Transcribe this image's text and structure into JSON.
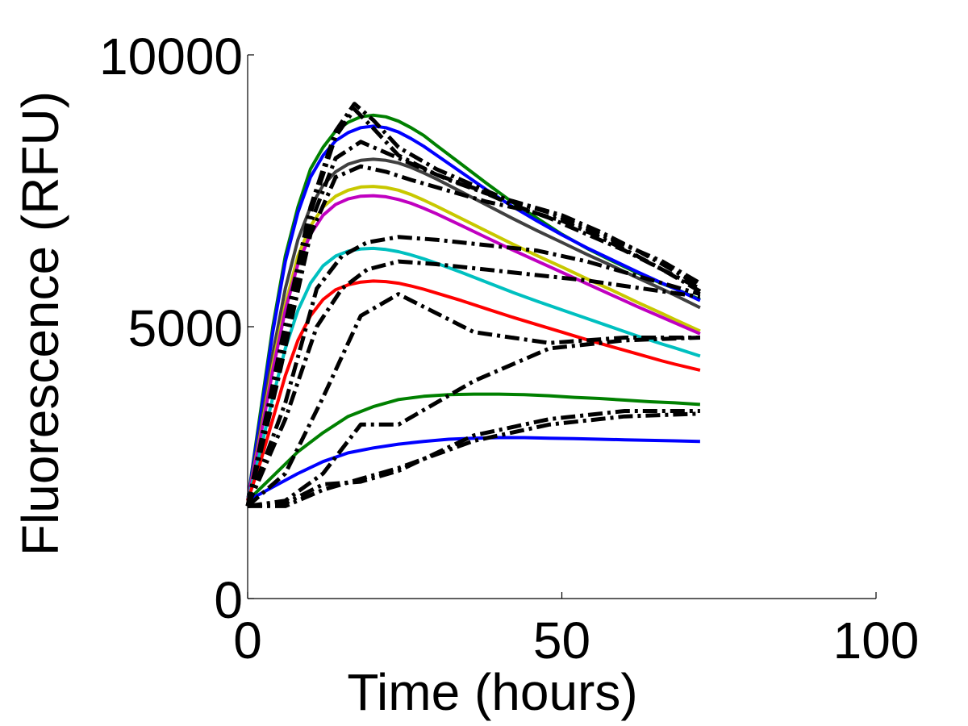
{
  "chart_data": {
    "type": "line",
    "title": "",
    "xlabel": "Time (hours)",
    "ylabel": "Fluorescence (RFU)",
    "xlim": [
      0,
      100
    ],
    "ylim": [
      0,
      10000
    ],
    "xticks": [
      0,
      50,
      100
    ],
    "yticks": [
      0,
      5000,
      10000
    ],
    "xtick_labels": [
      "0",
      "50",
      "100"
    ],
    "ytick_labels": [
      "0",
      "5000",
      "10000"
    ],
    "grid": false,
    "legend": "none",
    "series": [
      {
        "style": "solid",
        "color": "#008000",
        "x": [
          0,
          2,
          4,
          6,
          8,
          10,
          12,
          14,
          16,
          18,
          20,
          22,
          24,
          26,
          28,
          30,
          34,
          38,
          42,
          46,
          50,
          54,
          58,
          62,
          66,
          68,
          72
        ],
        "y": [
          1800,
          3400,
          5000,
          6300,
          7200,
          7900,
          8300,
          8600,
          8760,
          8860,
          8890,
          8860,
          8780,
          8660,
          8520,
          8340,
          7990,
          7640,
          7300,
          7000,
          6700,
          6440,
          6210,
          5990,
          5790,
          5700,
          5500
        ]
      },
      {
        "style": "solid",
        "color": "#0000ff",
        "x": [
          0,
          2,
          4,
          6,
          8,
          10,
          12,
          14,
          16,
          18,
          20,
          22,
          24,
          26,
          28,
          30,
          34,
          38,
          42,
          46,
          50,
          54,
          58,
          62,
          66,
          68,
          72
        ],
        "y": [
          1800,
          3300,
          4900,
          6200,
          7100,
          7750,
          8150,
          8420,
          8570,
          8660,
          8690,
          8660,
          8580,
          8460,
          8320,
          8160,
          7840,
          7520,
          7220,
          6950,
          6690,
          6450,
          6230,
          6010,
          5800,
          5700,
          5480
        ]
      },
      {
        "style": "solid",
        "color": "#404040",
        "x": [
          0,
          2,
          4,
          6,
          8,
          10,
          12,
          14,
          16,
          18,
          20,
          22,
          24,
          26,
          28,
          30,
          34,
          38,
          42,
          46,
          50,
          54,
          58,
          62,
          66,
          68,
          72
        ],
        "y": [
          1800,
          3100,
          4500,
          5700,
          6600,
          7200,
          7600,
          7850,
          7990,
          8060,
          8080,
          8060,
          8010,
          7930,
          7830,
          7720,
          7480,
          7240,
          7000,
          6770,
          6550,
          6330,
          6120,
          5900,
          5690,
          5580,
          5350
        ]
      },
      {
        "style": "solid",
        "color": "#c8c800",
        "x": [
          0,
          2,
          4,
          6,
          8,
          10,
          12,
          14,
          16,
          18,
          20,
          22,
          24,
          26,
          28,
          30,
          34,
          38,
          42,
          46,
          50,
          54,
          58,
          62,
          66,
          68,
          72
        ],
        "y": [
          1800,
          3000,
          4300,
          5400,
          6300,
          6850,
          7200,
          7400,
          7510,
          7570,
          7580,
          7560,
          7510,
          7430,
          7330,
          7220,
          6990,
          6760,
          6530,
          6310,
          6100,
          5880,
          5670,
          5450,
          5240,
          5130,
          4920
        ]
      },
      {
        "style": "solid",
        "color": "#c000c0",
        "x": [
          0,
          2,
          4,
          6,
          8,
          10,
          12,
          14,
          16,
          18,
          20,
          22,
          24,
          26,
          28,
          30,
          34,
          38,
          42,
          46,
          50,
          54,
          58,
          62,
          66,
          68,
          72
        ],
        "y": [
          1800,
          2950,
          4200,
          5300,
          6150,
          6700,
          7050,
          7250,
          7350,
          7400,
          7410,
          7390,
          7340,
          7270,
          7180,
          7080,
          6860,
          6640,
          6420,
          6210,
          6000,
          5790,
          5580,
          5370,
          5170,
          5070,
          4870
        ]
      },
      {
        "style": "solid",
        "color": "#00c0c0",
        "x": [
          0,
          2,
          4,
          6,
          8,
          10,
          12,
          14,
          16,
          18,
          20,
          22,
          24,
          26,
          28,
          30,
          34,
          38,
          42,
          46,
          50,
          54,
          58,
          62,
          66,
          68,
          72
        ],
        "y": [
          1800,
          2700,
          3700,
          4600,
          5300,
          5800,
          6120,
          6300,
          6390,
          6430,
          6440,
          6420,
          6380,
          6320,
          6250,
          6170,
          6000,
          5820,
          5640,
          5470,
          5310,
          5150,
          4990,
          4830,
          4680,
          4610,
          4460
        ]
      },
      {
        "style": "solid",
        "color": "#ff0000",
        "x": [
          0,
          2,
          4,
          6,
          8,
          10,
          12,
          14,
          16,
          18,
          20,
          22,
          24,
          26,
          28,
          30,
          34,
          38,
          42,
          46,
          50,
          54,
          58,
          62,
          66,
          68,
          72
        ],
        "y": [
          1800,
          2500,
          3300,
          4100,
          4750,
          5200,
          5500,
          5680,
          5770,
          5820,
          5840,
          5830,
          5800,
          5750,
          5690,
          5620,
          5480,
          5330,
          5180,
          5040,
          4900,
          4760,
          4630,
          4500,
          4370,
          4310,
          4200
        ]
      },
      {
        "style": "solid",
        "color": "#008000",
        "x": [
          0,
          4,
          8,
          12,
          16,
          20,
          24,
          28,
          32,
          36,
          40,
          44,
          48,
          52,
          56,
          60,
          64,
          68,
          72
        ],
        "y": [
          1800,
          2250,
          2700,
          3050,
          3350,
          3530,
          3660,
          3720,
          3750,
          3760,
          3760,
          3750,
          3730,
          3700,
          3680,
          3650,
          3620,
          3600,
          3570
        ]
      },
      {
        "style": "solid",
        "color": "#0000ff",
        "x": [
          0,
          4,
          8,
          12,
          16,
          20,
          24,
          28,
          32,
          36,
          40,
          44,
          48,
          52,
          56,
          60,
          64,
          68,
          72
        ],
        "y": [
          1800,
          2050,
          2300,
          2520,
          2680,
          2770,
          2840,
          2890,
          2930,
          2950,
          2960,
          2960,
          2950,
          2940,
          2930,
          2920,
          2910,
          2900,
          2890
        ]
      },
      {
        "style": "dashdot",
        "color": "#000000",
        "x": [
          0,
          5,
          10,
          14,
          17,
          20,
          24,
          30,
          36,
          42,
          48,
          54,
          60,
          66,
          72
        ],
        "y": [
          1700,
          4500,
          7200,
          8600,
          9100,
          8800,
          8300,
          7900,
          7600,
          7300,
          7100,
          6800,
          6500,
          6200,
          5800
        ]
      },
      {
        "style": "dashdot",
        "color": "#000000",
        "x": [
          0,
          5,
          10,
          14,
          17,
          20,
          24,
          30,
          36,
          42,
          48,
          54,
          60,
          66,
          72
        ],
        "y": [
          1700,
          4400,
          7100,
          8500,
          9000,
          8650,
          8150,
          7800,
          7550,
          7250,
          7000,
          6700,
          6400,
          6050,
          5650
        ]
      },
      {
        "style": "dashdot",
        "color": "#000000",
        "x": [
          0,
          5,
          10,
          14,
          18,
          22,
          26,
          32,
          38,
          44,
          50,
          56,
          62,
          66,
          72
        ],
        "y": [
          1700,
          4200,
          6900,
          8100,
          8400,
          8200,
          8000,
          7700,
          7450,
          7250,
          7050,
          6750,
          6400,
          6150,
          5750
        ]
      },
      {
        "style": "dashdot",
        "color": "#000000",
        "x": [
          0,
          5,
          10,
          14,
          18,
          22,
          26,
          32,
          38,
          44,
          50,
          56,
          62,
          66,
          72
        ],
        "y": [
          1700,
          4100,
          6700,
          7750,
          7950,
          7850,
          7700,
          7500,
          7300,
          7150,
          6950,
          6650,
          6300,
          6050,
          5700
        ]
      },
      {
        "style": "dashdot",
        "color": "#000000",
        "x": [
          0,
          6,
          11,
          15,
          19,
          24,
          30,
          38,
          46,
          54,
          60,
          66,
          72
        ],
        "y": [
          1700,
          3600,
          5700,
          6300,
          6550,
          6650,
          6600,
          6500,
          6400,
          6200,
          6000,
          5800,
          5600
        ]
      },
      {
        "style": "dashdot",
        "color": "#000000",
        "x": [
          0,
          6,
          11,
          15,
          19,
          24,
          30,
          38,
          46,
          54,
          60,
          66,
          72
        ],
        "y": [
          1700,
          3300,
          5000,
          5700,
          6050,
          6200,
          6150,
          6050,
          5950,
          5850,
          5750,
          5650,
          5550
        ]
      },
      {
        "style": "dashdot",
        "color": "#000000",
        "x": [
          0,
          6,
          12,
          18,
          24,
          36,
          48,
          60,
          72
        ],
        "y": [
          1700,
          2300,
          3700,
          5200,
          5600,
          4900,
          4700,
          4800,
          4800
        ]
      },
      {
        "style": "dashdot",
        "color": "#000000",
        "x": [
          0,
          6,
          12,
          18,
          24,
          36,
          48,
          60,
          72
        ],
        "y": [
          1700,
          1800,
          2300,
          3200,
          3200,
          4000,
          4600,
          4750,
          4800
        ]
      },
      {
        "style": "dashdot",
        "color": "#000000",
        "x": [
          0,
          6,
          12,
          18,
          24,
          36,
          48,
          60,
          72
        ],
        "y": [
          1700,
          1750,
          2100,
          2150,
          2350,
          3000,
          3300,
          3450,
          3450
        ]
      },
      {
        "style": "dashdot",
        "color": "#000000",
        "x": [
          0,
          6,
          12,
          18,
          24,
          36,
          48,
          60,
          72
        ],
        "y": [
          1700,
          1700,
          2000,
          2200,
          2400,
          2900,
          3200,
          3350,
          3400
        ]
      }
    ]
  }
}
